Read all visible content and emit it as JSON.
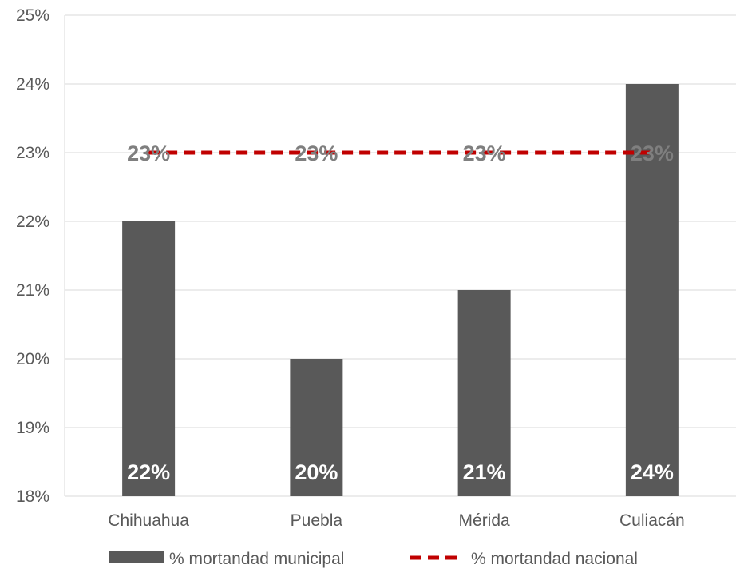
{
  "chart_data": {
    "type": "bar",
    "categories": [
      "Chihuahua",
      "Puebla",
      "Mérida",
      "Culiacán"
    ],
    "series": [
      {
        "name": "% mortandad municipal",
        "type": "bar",
        "values": [
          22,
          20,
          21,
          24
        ],
        "labels": [
          "22%",
          "20%",
          "21%",
          "24%"
        ],
        "color": "#595959"
      },
      {
        "name": "% mortandad nacional",
        "type": "line",
        "style": "dashed",
        "values": [
          23,
          23,
          23,
          23
        ],
        "labels": [
          "23%",
          "23%",
          "23%",
          "23%"
        ],
        "color": "#c00000"
      }
    ],
    "ylim": [
      18,
      25
    ],
    "yticks": [
      18,
      19,
      20,
      21,
      22,
      23,
      24,
      25
    ],
    "ytick_labels": [
      "18%",
      "19%",
      "20%",
      "21%",
      "22%",
      "23%",
      "24%",
      "25%"
    ],
    "grid": "horizontal",
    "legend": "bottom",
    "title": "",
    "xlabel": "",
    "ylabel": ""
  }
}
